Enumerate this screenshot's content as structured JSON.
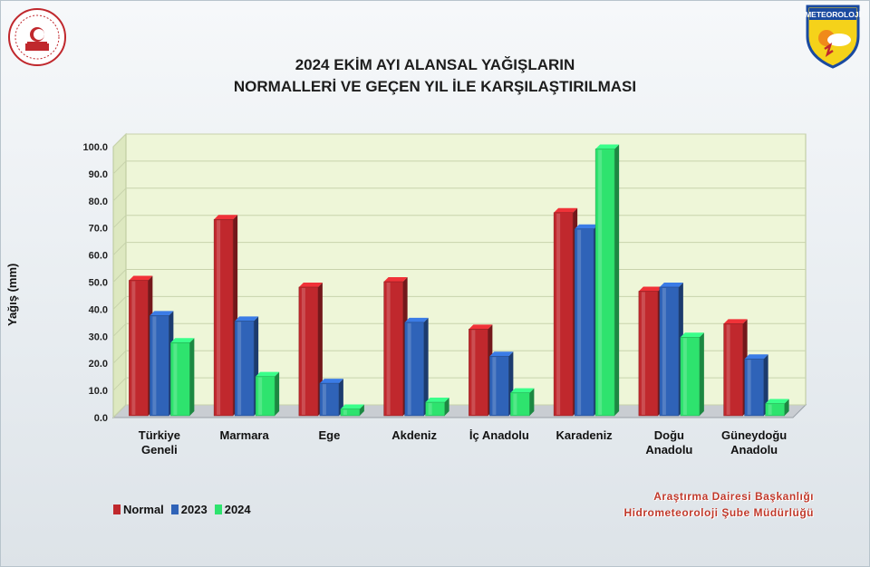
{
  "title": {
    "line1": "2024 EKİM AYI ALANSAL YAĞIŞLARIN",
    "line2": "NORMALLERİ VE GEÇEN YIL İLE KARŞILAŞTIRILMASI"
  },
  "credit": {
    "line1": "Araştırma Dairesi Başkanlığı",
    "line2": "Hidrometeoroloji Şube Müdürlüğü"
  },
  "logo_text": "METEOROLOJİ",
  "chart_data": {
    "type": "bar",
    "ylabel": "Yağış (mm)",
    "ylim": [
      0,
      100
    ],
    "yticks": [
      "0.0",
      "10.0",
      "20.0",
      "30.0",
      "40.0",
      "50.0",
      "60.0",
      "70.0",
      "80.0",
      "90.0",
      "100.0"
    ],
    "categories": [
      [
        "Türkiye",
        "Geneli"
      ],
      [
        "Marmara"
      ],
      [
        "Ege"
      ],
      [
        "Akdeniz"
      ],
      [
        "İç Anadolu"
      ],
      [
        "Karadeniz"
      ],
      [
        "Doğu",
        "Anadolu"
      ],
      [
        "Güneydoğu",
        "Anadolu"
      ]
    ],
    "series": [
      {
        "name": "Normal",
        "color": "#c0282d",
        "values": [
          50.0,
          72.5,
          47.5,
          49.5,
          32.0,
          75.0,
          46.0,
          34.0
        ]
      },
      {
        "name": "2023",
        "color": "#2f63b8",
        "values": [
          37.0,
          35.0,
          12.0,
          34.5,
          22.0,
          69.0,
          47.5,
          21.0
        ]
      },
      {
        "name": "2024",
        "color": "#2ee36e",
        "values": [
          27.0,
          14.5,
          2.5,
          5.0,
          8.5,
          98.5,
          29.0,
          4.5
        ]
      }
    ],
    "grid": true,
    "legend_position": "bottom-left"
  }
}
